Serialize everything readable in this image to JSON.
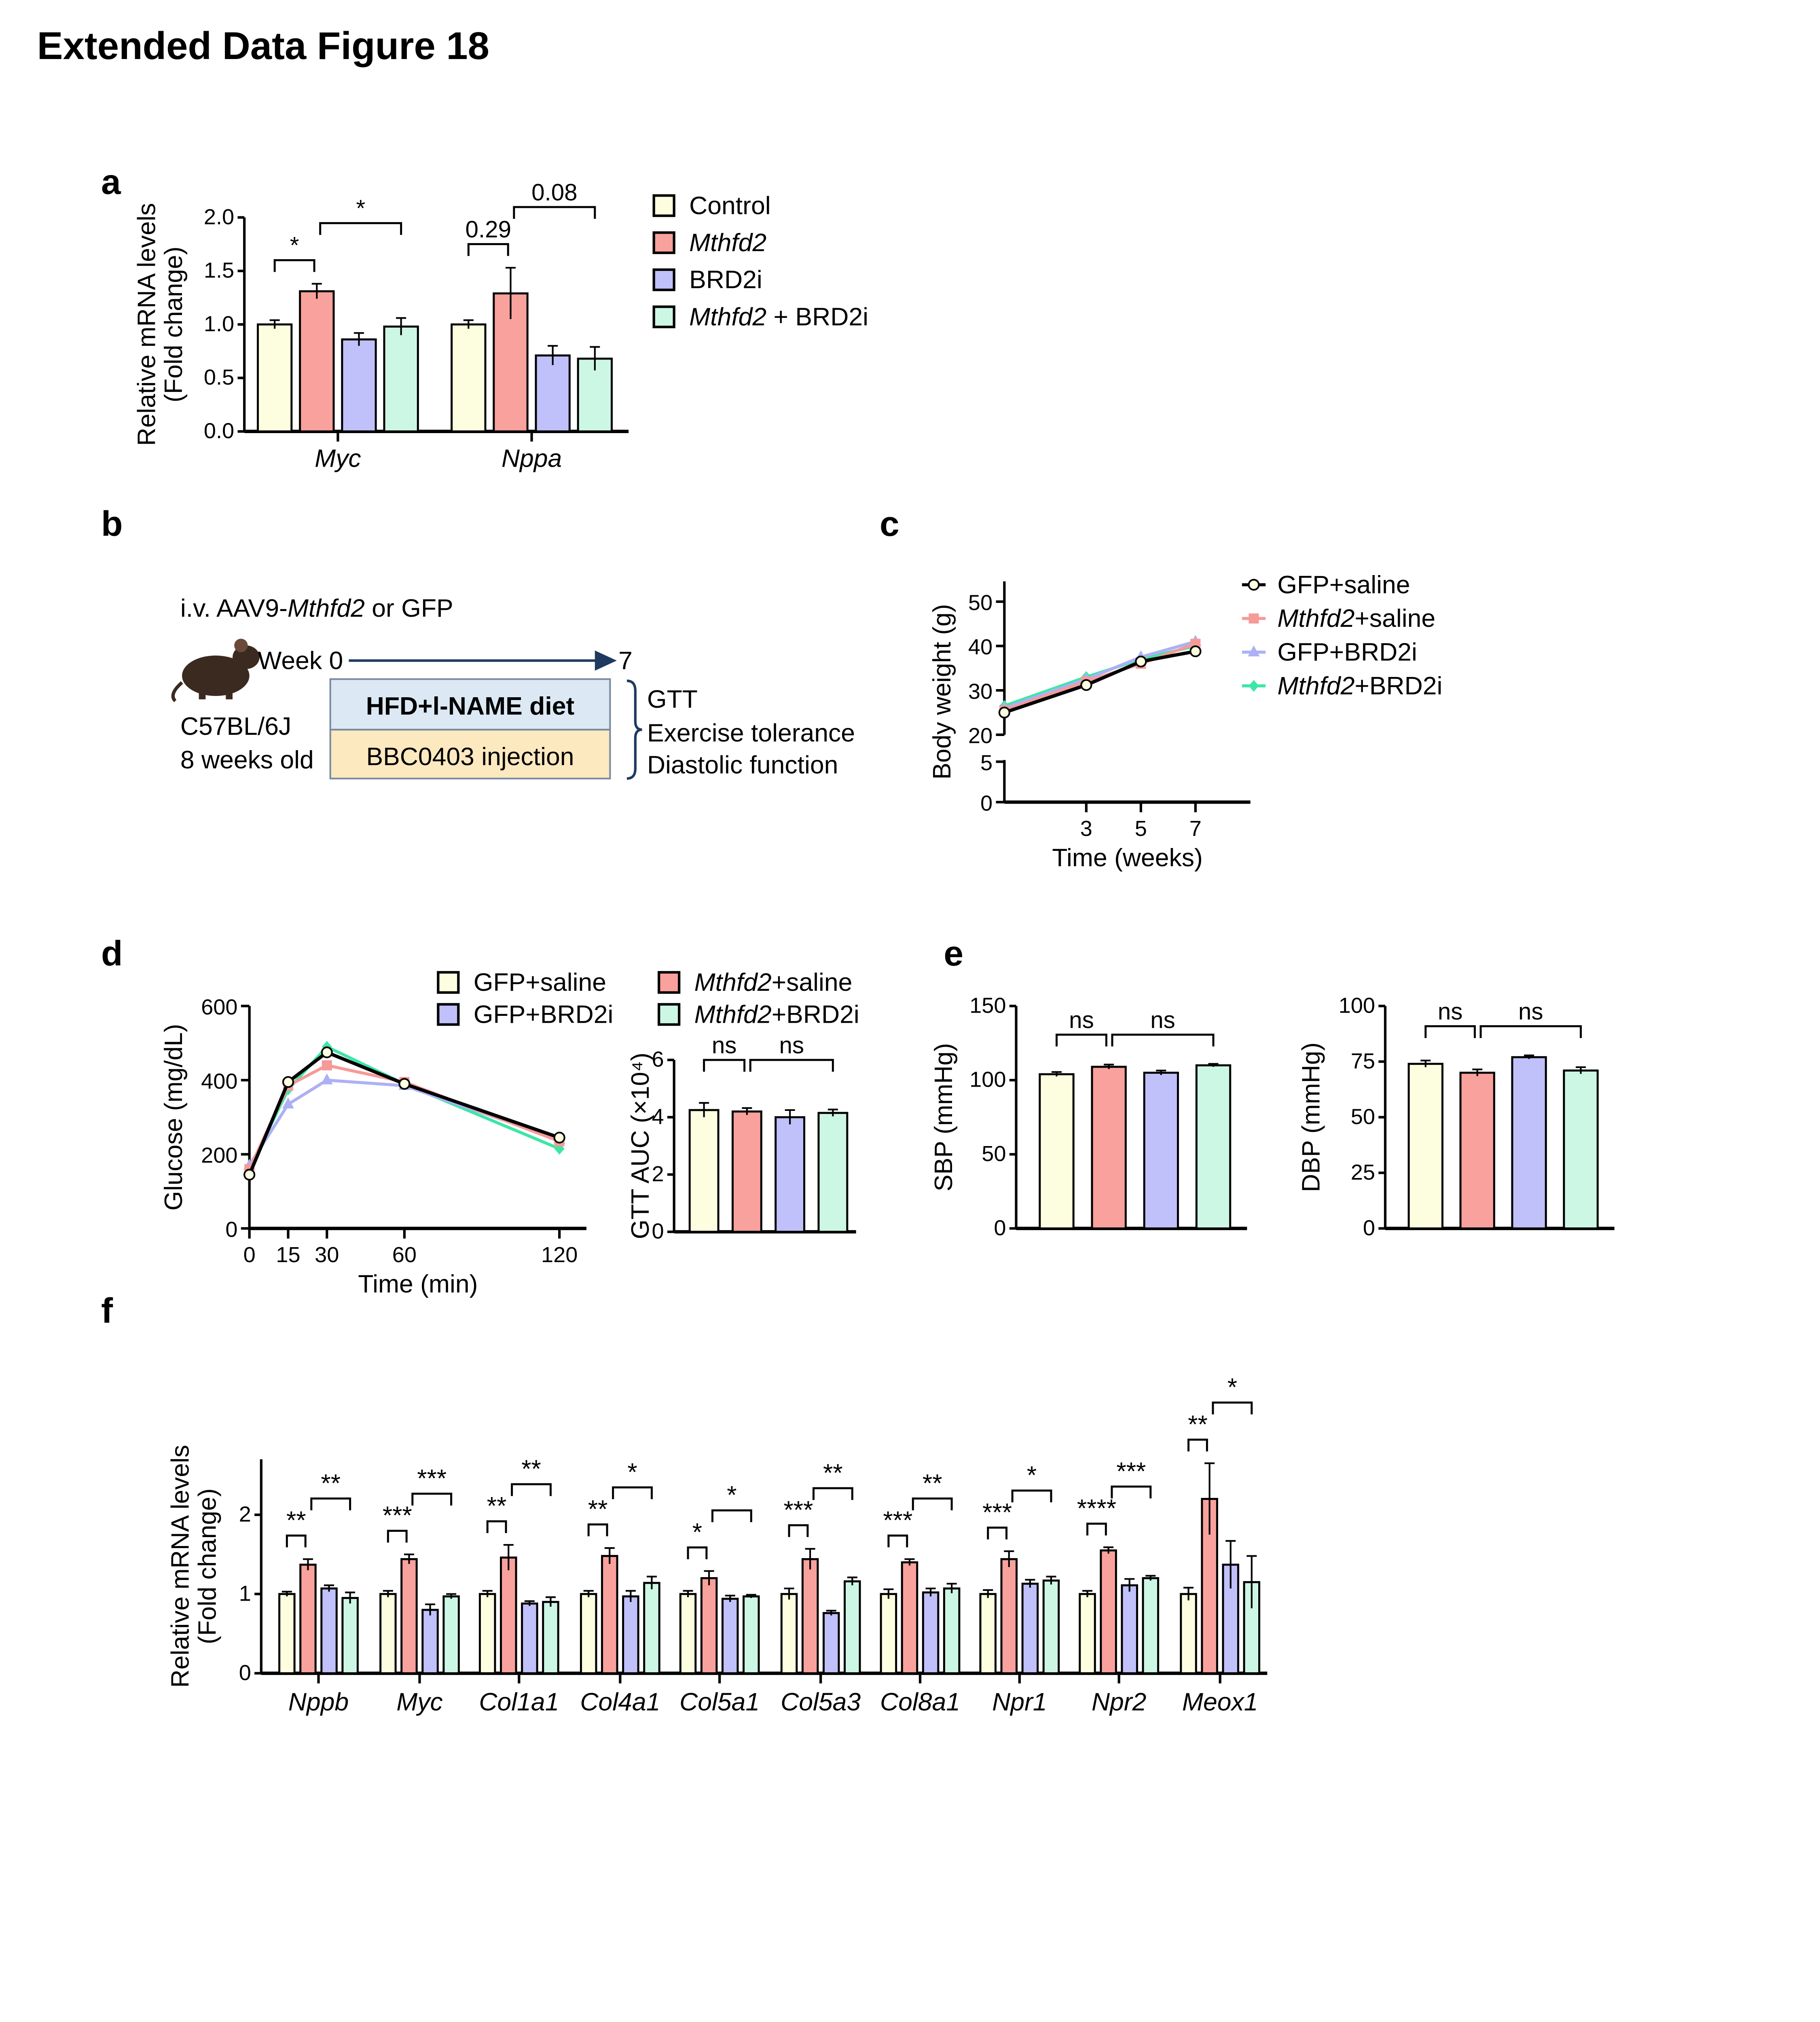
{
  "figure_title": "Extended Data Figure 18",
  "panel_labels": [
    "a",
    "b",
    "c",
    "d",
    "e",
    "f"
  ],
  "colors": {
    "control": "#fdfde0",
    "mthfd2": "#f9a19c",
    "brd2i": "#c0c0fb",
    "combo": "#cdf7e5",
    "line_gfp_saline": "#000000",
    "line_mthfd2_saline": "#f59a97",
    "line_gfp_brd2i": "#aeb0f5",
    "line_combo": "#3ee6a6"
  },
  "schematic": {
    "injection_prefix": "i.v. AAV9-",
    "injection_gene": "Mthfd2",
    "injection_suffix": " or GFP",
    "week_start": "Week 0",
    "week_end": "7",
    "strain": "C57BL/6J",
    "age": "8 weeks old",
    "diet_box": "HFD+l-NAME diet",
    "injection_box": "BBC0403 injection",
    "readouts": [
      "GTT",
      "Exercise tolerance",
      "Diastolic function"
    ]
  },
  "chart_data": [
    {
      "id": "a",
      "type": "bar",
      "ylabel": [
        "Relative mRNA levels",
        "(Fold change)"
      ],
      "ylim": [
        0,
        2.0
      ],
      "yticks": [
        0,
        0.5,
        1.0,
        1.5,
        2.0
      ],
      "ytick_labels": [
        "0.0",
        "0.5",
        "1.0",
        "1.5",
        "2.0"
      ],
      "categories": [
        "Myc",
        "Nppa"
      ],
      "legend": [
        {
          "gene": "",
          "text": "Control"
        },
        {
          "gene": "Mthfd2",
          "text": ""
        },
        {
          "gene": "",
          "text": "BRD2i"
        },
        {
          "gene": "Mthfd2",
          "text": " + BRD2i"
        }
      ],
      "series": [
        {
          "name": "Control",
          "values": [
            1.0,
            1.0
          ],
          "sem": [
            0.04,
            0.04
          ]
        },
        {
          "name": "Mthfd2",
          "values": [
            1.31,
            1.29
          ],
          "sem": [
            0.07,
            0.24
          ]
        },
        {
          "name": "BRD2i",
          "values": [
            0.86,
            0.71
          ],
          "sem": [
            0.06,
            0.09
          ]
        },
        {
          "name": "Mthfd2 + BRD2i",
          "values": [
            0.98,
            0.68
          ],
          "sem": [
            0.08,
            0.11
          ]
        }
      ],
      "significance": [
        [
          {
            "from": 0,
            "to": 1,
            "label": "*"
          },
          {
            "from": 1,
            "to": 3,
            "label": "*"
          }
        ],
        [
          {
            "from": 0,
            "to": 1,
            "label": "0.29"
          },
          {
            "from": 1,
            "to": 3,
            "label": "0.08"
          }
        ]
      ]
    },
    {
      "id": "c",
      "type": "line",
      "xlabel": "Time (weeks)",
      "ylabel": "Body weight (g)",
      "xticks": [
        3,
        5,
        7
      ],
      "xtick_labels": [
        "3",
        "5",
        "7"
      ],
      "yticks": [
        0,
        5,
        20,
        30,
        40,
        50
      ],
      "ytick_labels": [
        "0",
        "5",
        "20",
        "30",
        "40",
        "50"
      ],
      "y_axis_break": [
        5,
        20
      ],
      "x": [
        0,
        3,
        5,
        7
      ],
      "legend": [
        {
          "gene": "",
          "text": "GFP+saline"
        },
        {
          "gene": "Mthfd2",
          "text": "+saline"
        },
        {
          "gene": "",
          "text": "GFP+BRD2i"
        },
        {
          "gene": "Mthfd2",
          "text": "+BRD2i"
        }
      ],
      "series": [
        {
          "name": "GFP+saline",
          "values": [
            25,
            31.2,
            36.5,
            38.8
          ]
        },
        {
          "name": "Mthfd2+saline",
          "values": [
            25.5,
            32,
            36,
            40.5
          ]
        },
        {
          "name": "GFP+BRD2i",
          "values": [
            26,
            32.5,
            37.5,
            41
          ]
        },
        {
          "name": "Mthfd2+BRD2i",
          "values": [
            26.5,
            33,
            37,
            40
          ]
        }
      ]
    },
    {
      "id": "d1",
      "type": "line",
      "xlabel": "Time (min)",
      "ylabel": "Glucose (mg/dL)",
      "xticks": [
        0,
        15,
        30,
        60,
        120
      ],
      "xtick_labels": [
        "0",
        "15",
        "30",
        "60",
        "120"
      ],
      "yticks": [
        0,
        200,
        400,
        600
      ],
      "ytick_labels": [
        "0",
        "200",
        "400",
        "600"
      ],
      "ylim": [
        0,
        600
      ],
      "x": [
        0,
        15,
        30,
        60,
        120
      ],
      "legend": [
        {
          "gene": "",
          "text": "GFP+saline"
        },
        {
          "gene": "Mthfd2",
          "text": "+saline"
        },
        {
          "gene": "",
          "text": "GFP+BRD2i"
        },
        {
          "gene": "Mthfd2",
          "text": "+BRD2i"
        }
      ],
      "series": [
        {
          "name": "GFP+saline",
          "values": [
            145,
            395,
            475,
            390,
            245
          ]
        },
        {
          "name": "Mthfd2+saline",
          "values": [
            160,
            385,
            440,
            395,
            235
          ]
        },
        {
          "name": "GFP+BRD2i",
          "values": [
            170,
            335,
            400,
            385,
            240
          ]
        },
        {
          "name": "Mthfd2+BRD2i",
          "values": [
            160,
            375,
            490,
            390,
            215
          ]
        }
      ]
    },
    {
      "id": "d2",
      "type": "bar",
      "ylabel": "GTT AUC (×10⁴)",
      "ylim": [
        0,
        6
      ],
      "yticks": [
        0,
        2,
        4,
        6
      ],
      "ytick_labels": [
        "0",
        "2",
        "4",
        "6"
      ],
      "categories": [
        ""
      ],
      "series": [
        {
          "name": "GFP+saline",
          "values": [
            4.25
          ],
          "sem": [
            0.25
          ]
        },
        {
          "name": "Mthfd2+saline",
          "values": [
            4.2
          ],
          "sem": [
            0.12
          ]
        },
        {
          "name": "GFP+BRD2i",
          "values": [
            4.0
          ],
          "sem": [
            0.25
          ]
        },
        {
          "name": "Mthfd2+BRD2i",
          "values": [
            4.15
          ],
          "sem": [
            0.12
          ]
        }
      ],
      "significance": [
        [
          {
            "from": 0,
            "to": 1,
            "label": "ns"
          },
          {
            "from": 1,
            "to": 3,
            "label": "ns"
          }
        ]
      ]
    },
    {
      "id": "e1",
      "type": "bar",
      "ylabel": "SBP (mmHg)",
      "ylim": [
        0,
        150
      ],
      "yticks": [
        0,
        50,
        100,
        150
      ],
      "ytick_labels": [
        "0",
        "50",
        "100",
        "150"
      ],
      "categories": [
        ""
      ],
      "series": [
        {
          "name": "GFP+saline",
          "values": [
            104
          ],
          "sem": [
            1.5
          ]
        },
        {
          "name": "Mthfd2+saline",
          "values": [
            109
          ],
          "sem": [
            1.5
          ]
        },
        {
          "name": "GFP+BRD2i",
          "values": [
            105
          ],
          "sem": [
            1.5
          ]
        },
        {
          "name": "Mthfd2+BRD2i",
          "values": [
            110
          ],
          "sem": [
            1
          ]
        }
      ],
      "significance": [
        [
          {
            "from": 0,
            "to": 1,
            "label": "ns"
          },
          {
            "from": 1,
            "to": 3,
            "label": "ns"
          }
        ]
      ]
    },
    {
      "id": "e2",
      "type": "bar",
      "ylabel": "DBP (mmHg)",
      "ylim": [
        0,
        100
      ],
      "yticks": [
        0,
        25,
        50,
        75,
        100
      ],
      "ytick_labels": [
        "0",
        "25",
        "50",
        "75",
        "100"
      ],
      "categories": [
        ""
      ],
      "series": [
        {
          "name": "GFP+saline",
          "values": [
            74
          ],
          "sem": [
            1.5
          ]
        },
        {
          "name": "Mthfd2+saline",
          "values": [
            70
          ],
          "sem": [
            1.5
          ]
        },
        {
          "name": "GFP+BRD2i",
          "values": [
            77
          ],
          "sem": [
            0.8
          ]
        },
        {
          "name": "Mthfd2+BRD2i",
          "values": [
            71
          ],
          "sem": [
            1.5
          ]
        }
      ],
      "significance": [
        [
          {
            "from": 0,
            "to": 1,
            "label": "ns"
          },
          {
            "from": 1,
            "to": 3,
            "label": "ns"
          }
        ]
      ]
    },
    {
      "id": "f",
      "type": "bar",
      "ylabel": [
        "Relative mRNA levels",
        "(Fold change)"
      ],
      "ylim": [
        0,
        2.7
      ],
      "yticks": [
        0,
        1,
        2
      ],
      "ytick_labels": [
        "0",
        "1",
        "2"
      ],
      "categories": [
        "Nppb",
        "Myc",
        "Col1a1",
        "Col4a1",
        "Col5a1",
        "Col5a3",
        "Col8a1",
        "Npr1",
        "Npr2",
        "Meox1"
      ],
      "series": [
        {
          "name": "GFP+saline",
          "values": [
            1.0,
            1.0,
            1.0,
            1.0,
            1.0,
            1.0,
            1.0,
            1.0,
            1.0,
            1.0
          ],
          "sem": [
            0.03,
            0.04,
            0.04,
            0.04,
            0.04,
            0.07,
            0.06,
            0.05,
            0.04,
            0.08
          ]
        },
        {
          "name": "Mthfd2+saline",
          "values": [
            1.37,
            1.44,
            1.46,
            1.48,
            1.2,
            1.44,
            1.4,
            1.44,
            1.55,
            2.2
          ],
          "sem": [
            0.07,
            0.06,
            0.16,
            0.1,
            0.09,
            0.13,
            0.04,
            0.1,
            0.04,
            0.45
          ]
        },
        {
          "name": "GFP+BRD2i",
          "values": [
            1.07,
            0.8,
            0.88,
            0.97,
            0.94,
            0.76,
            1.02,
            1.13,
            1.11,
            1.37
          ],
          "sem": [
            0.04,
            0.07,
            0.03,
            0.07,
            0.04,
            0.03,
            0.05,
            0.05,
            0.08,
            0.3
          ]
        },
        {
          "name": "Mthfd2+BRD2i",
          "values": [
            0.95,
            0.97,
            0.9,
            1.14,
            0.97,
            1.16,
            1.07,
            1.17,
            1.2,
            1.15
          ],
          "sem": [
            0.07,
            0.03,
            0.06,
            0.08,
            0.02,
            0.05,
            0.06,
            0.05,
            0.03,
            0.33
          ]
        }
      ],
      "significance": [
        [
          {
            "from": 0,
            "to": 1,
            "label": "**"
          },
          {
            "from": 1,
            "to": 3,
            "label": "**"
          }
        ],
        [
          {
            "from": 0,
            "to": 1,
            "label": "***"
          },
          {
            "from": 1,
            "to": 3,
            "label": "***"
          }
        ],
        [
          {
            "from": 0,
            "to": 1,
            "label": "**"
          },
          {
            "from": 1,
            "to": 3,
            "label": "**"
          }
        ],
        [
          {
            "from": 0,
            "to": 1,
            "label": "**"
          },
          {
            "from": 1,
            "to": 3,
            "label": "*"
          }
        ],
        [
          {
            "from": 0,
            "to": 1,
            "label": "*"
          },
          {
            "from": 1,
            "to": 3,
            "label": "*"
          }
        ],
        [
          {
            "from": 0,
            "to": 1,
            "label": "***"
          },
          {
            "from": 1,
            "to": 3,
            "label": "**"
          }
        ],
        [
          {
            "from": 0,
            "to": 1,
            "label": "***"
          },
          {
            "from": 1,
            "to": 3,
            "label": "**"
          }
        ],
        [
          {
            "from": 0,
            "to": 1,
            "label": "***"
          },
          {
            "from": 1,
            "to": 3,
            "label": "*"
          }
        ],
        [
          {
            "from": 0,
            "to": 1,
            "label": "****"
          },
          {
            "from": 1,
            "to": 3,
            "label": "***"
          }
        ],
        [
          {
            "from": 0,
            "to": 1,
            "label": "**"
          },
          {
            "from": 1,
            "to": 3,
            "label": "*"
          }
        ]
      ]
    }
  ]
}
